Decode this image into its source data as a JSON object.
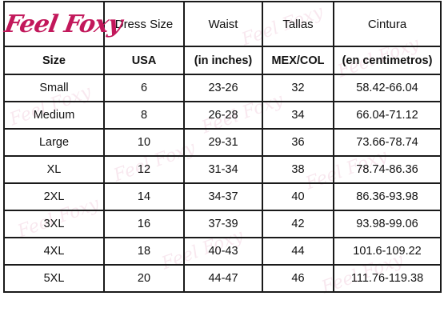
{
  "brand": {
    "logo_text": "Feel Foxy",
    "logo_color": "#c2185b",
    "watermark_text": "Feel Foxy"
  },
  "header_row_1": [
    "Dress Size",
    "Waist",
    "Tallas",
    "Cintura"
  ],
  "header_row_2": [
    "Size",
    "USA",
    "(in inches)",
    "MEX/COL",
    "(en centimetros)"
  ],
  "rows": [
    {
      "size": "Small",
      "usa": "6",
      "waist": "23-26",
      "mex": "32",
      "cm": "58.42-66.04"
    },
    {
      "size": "Medium",
      "usa": "8",
      "waist": "26-28",
      "mex": "34",
      "cm": "66.04-71.12"
    },
    {
      "size": "Large",
      "usa": "10",
      "waist": "29-31",
      "mex": "36",
      "cm": "73.66-78.74"
    },
    {
      "size": "XL",
      "usa": "12",
      "waist": "31-34",
      "mex": "38",
      "cm": "78.74-86.36"
    },
    {
      "size": "2XL",
      "usa": "14",
      "waist": "34-37",
      "mex": "40",
      "cm": "86.36-93.98"
    },
    {
      "size": "3XL",
      "usa": "16",
      "waist": "37-39",
      "mex": "42",
      "cm": "93.98-99.06"
    },
    {
      "size": "4XL",
      "usa": "18",
      "waist": "40-43",
      "mex": "44",
      "cm": "101.6-109.22"
    },
    {
      "size": "5XL",
      "usa": "20",
      "waist": "44-47",
      "mex": "46",
      "cm": "111.76-119.38"
    }
  ]
}
